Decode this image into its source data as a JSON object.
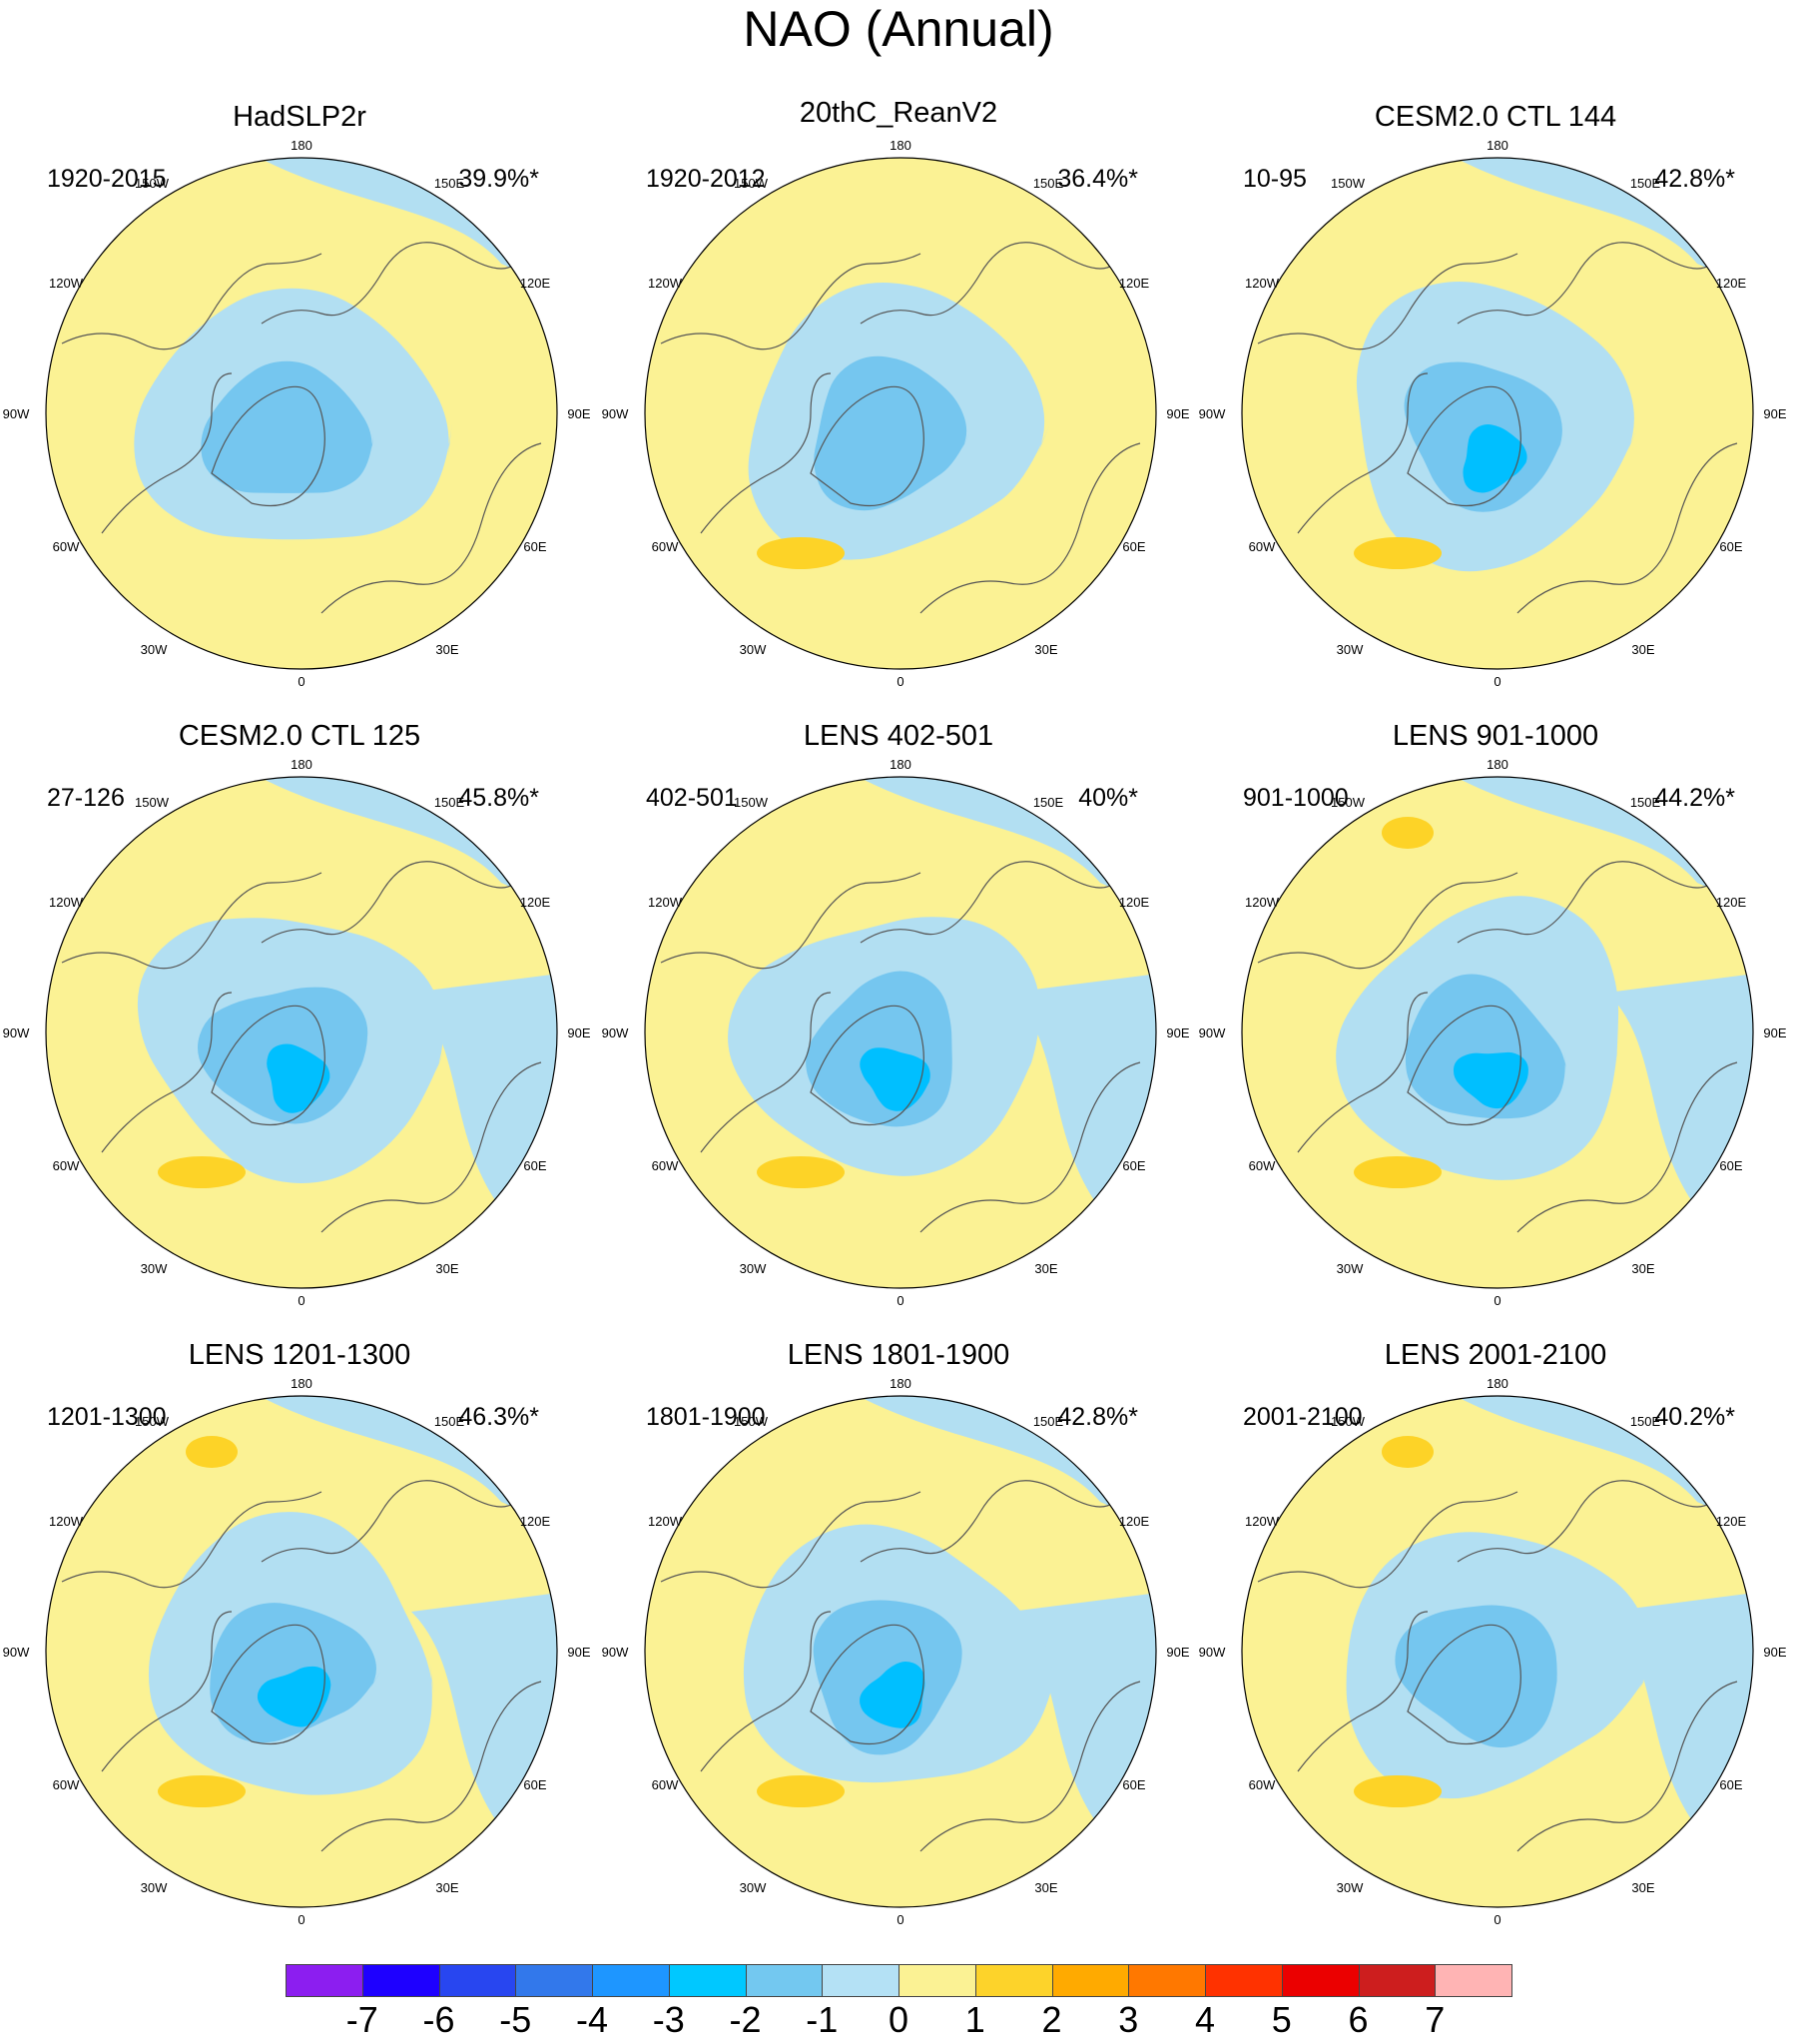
{
  "title": "NAO (Annual)",
  "axis_labels": {
    "top": "180",
    "bottom": "0",
    "left_mid": "90W",
    "right_mid": "90E",
    "upper_left": "150W",
    "upper_right": "150E",
    "left_upper": "120W",
    "right_upper": "120E",
    "left_lower": "60W",
    "right_lower": "60E",
    "lower_left": "30W",
    "lower_right": "30E"
  },
  "colors": {
    "ocean_land_positive_small": "#fbf294",
    "negative_small": "#b2dff2",
    "negative_1": "#75c6ef",
    "negative_2": "#00bfff",
    "positive_1": "#fdd327",
    "coast": "#555555"
  },
  "panels": [
    {
      "title": "HadSLP2r",
      "period": "1920-2015",
      "variance": "39.9%*"
    },
    {
      "title": "20thC_ReanV2",
      "period": "1920-2012",
      "variance": "36.4%*"
    },
    {
      "title": "CESM2.0 CTL 144",
      "period": "10-95",
      "variance": "42.8%*"
    },
    {
      "title": "CESM2.0 CTL 125",
      "period": "27-126",
      "variance": "45.8%*"
    },
    {
      "title": "LENS 402-501",
      "period": "402-501",
      "variance": "40%*"
    },
    {
      "title": "LENS 901-1000",
      "period": "901-1000",
      "variance": "44.2%*"
    },
    {
      "title": "LENS 1201-1300",
      "period": "1201-1300",
      "variance": "46.3%*"
    },
    {
      "title": "LENS 1801-1900",
      "period": "1801-1900",
      "variance": "42.8%*"
    },
    {
      "title": "LENS 2001-2100",
      "period": "2001-2100",
      "variance": "40.2%*"
    }
  ],
  "colorbar": {
    "labels": [
      "-7",
      "-6",
      "-5",
      "-4",
      "-3",
      "-2",
      "-1",
      "0",
      "1",
      "2",
      "3",
      "4",
      "5",
      "6",
      "7"
    ],
    "colors": [
      "#8c1ef0",
      "#1e00ff",
      "#2846f0",
      "#3278eb",
      "#1e96ff",
      "#00c8ff",
      "#73c8f0",
      "#b4e1f5",
      "#fbf294",
      "#fdd32a",
      "#ffaa00",
      "#ff7800",
      "#ff3200",
      "#eb0000",
      "#cd1e1e",
      "#ffb4b4"
    ]
  }
}
